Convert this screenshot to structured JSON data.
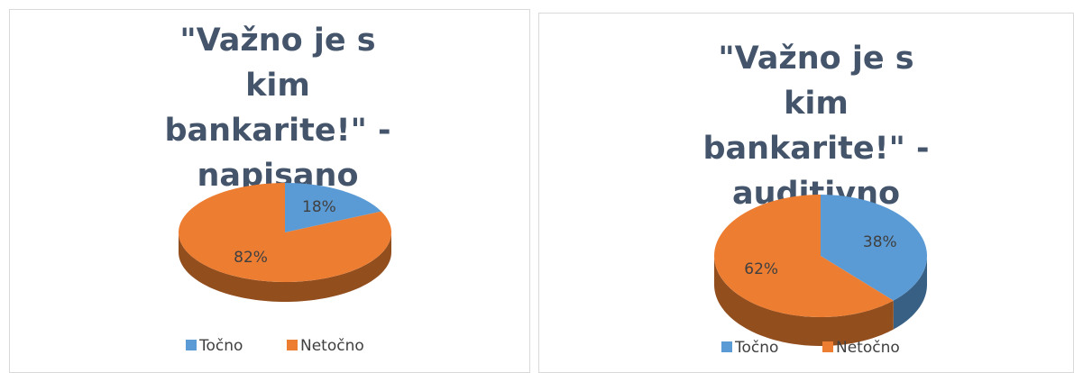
{
  "chart_data": [
    {
      "type": "pie",
      "title": "\"Važno je s kim bankarite!\" -napisano",
      "categories": [
        "Točno",
        "Netočno"
      ],
      "values": [
        18,
        82
      ],
      "value_labels": [
        "18%",
        "82%"
      ],
      "colors": [
        "#5b9bd5",
        "#ed7d31"
      ]
    },
    {
      "type": "pie",
      "title": "\"Važno je s kim bankarite!\" -auditivno",
      "categories": [
        "Točno",
        "Netočno"
      ],
      "values": [
        38,
        62
      ],
      "value_labels": [
        "38%",
        "62%"
      ],
      "colors": [
        "#5b9bd5",
        "#ed7d31"
      ]
    }
  ]
}
